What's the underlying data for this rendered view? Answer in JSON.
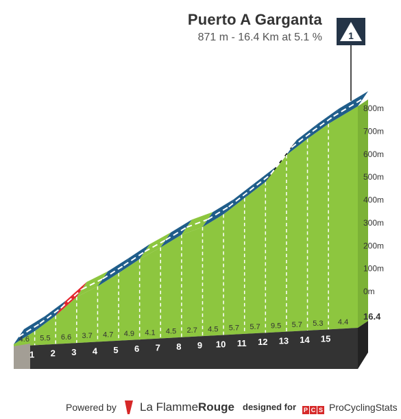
{
  "header": {
    "title": "Puerto A Garganta",
    "subtitle": "871 m - 16.4 Km at 5.1 %"
  },
  "marker": {
    "label": "1"
  },
  "footer": {
    "powered_by": "Powered by",
    "brand_light": "La Flamme",
    "brand_bold": "Rouge",
    "designed_for": "designed for",
    "pcs_letters": "PCS",
    "pcs_name": "ProCyclingStats"
  },
  "colors": {
    "terrain": "#8dc63f",
    "road_easy": "#1f5d8a",
    "road_flat": "#8dc63f",
    "road_hard": "#e3262e",
    "road_steep": "#111111",
    "base": "#333333",
    "start_block": "#a39e95"
  },
  "chart_data": {
    "type": "area",
    "title": "Puerto A Garganta",
    "xlabel": "",
    "ylabel": "",
    "x_unit": "km",
    "y_unit": "m",
    "distance_total": "16.4",
    "km_markers": [
      "1",
      "2",
      "3",
      "4",
      "5",
      "6",
      "7",
      "8",
      "9",
      "10",
      "11",
      "12",
      "13",
      "14",
      "15"
    ],
    "segment_gradients": [
      "4.6",
      "5.5",
      "6.6",
      "3.7",
      "4.7",
      "4.9",
      "4.1",
      "4.5",
      "2.7",
      "4.5",
      "5.7",
      "5.7",
      "9.5",
      "5.7",
      "5.3",
      "4.4"
    ],
    "segment_gradient_values": [
      4.6,
      5.5,
      6.6,
      3.7,
      4.7,
      4.9,
      4.1,
      4.5,
      2.7,
      4.5,
      5.7,
      5.7,
      9.5,
      5.7,
      5.3,
      4.4
    ],
    "y_ticks": [
      "0m",
      "100m",
      "200m",
      "300m",
      "400m",
      "500m",
      "600m",
      "700m",
      "800m"
    ],
    "y_tick_values": [
      0,
      100,
      200,
      300,
      400,
      500,
      600,
      700,
      800
    ],
    "ylim": [
      0,
      871
    ],
    "xlim": [
      0,
      16.4
    ],
    "grid": false,
    "legend": "none"
  }
}
